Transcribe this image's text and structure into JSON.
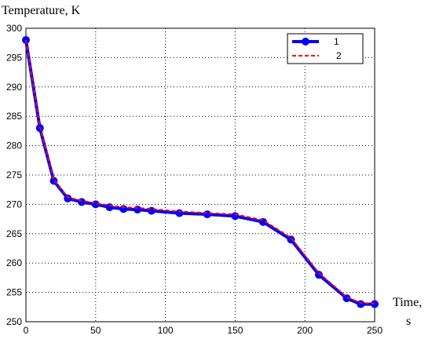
{
  "chart_data": {
    "type": "line",
    "ylabel": "Temperature, K",
    "xlabel_line1": "Time,",
    "xlabel_line2": "s",
    "xlim": [
      0,
      250
    ],
    "ylim": [
      250,
      300
    ],
    "xticks": [
      0,
      50,
      100,
      150,
      200,
      250
    ],
    "yticks": [
      250,
      255,
      260,
      265,
      270,
      275,
      280,
      285,
      290,
      295,
      300
    ],
    "grid": true,
    "legend_position": "top-right",
    "series": [
      {
        "name": "1",
        "color": "#0000ff",
        "style": "solid-with-circles",
        "x": [
          0,
          10,
          20,
          30,
          40,
          50,
          60,
          70,
          80,
          90,
          110,
          130,
          150,
          170,
          190,
          210,
          230,
          240,
          250
        ],
        "y": [
          298,
          283,
          274,
          271,
          270.4,
          270,
          269.5,
          269.2,
          269.1,
          268.9,
          268.5,
          268.3,
          268,
          267,
          264,
          258,
          254,
          253,
          253
        ]
      },
      {
        "name": "2",
        "color": "#ff0000",
        "style": "dashed",
        "x": [
          0,
          10,
          20,
          30,
          40,
          50,
          60,
          70,
          80,
          90,
          110,
          130,
          150,
          170,
          190,
          210,
          230,
          240,
          250
        ],
        "y": [
          298,
          283.2,
          274.2,
          271.2,
          270.6,
          270.2,
          269.8,
          269.5,
          269.4,
          269.2,
          268.8,
          268.5,
          268.3,
          267.3,
          264.3,
          258.3,
          254.2,
          253.2,
          253.1
        ]
      }
    ]
  }
}
